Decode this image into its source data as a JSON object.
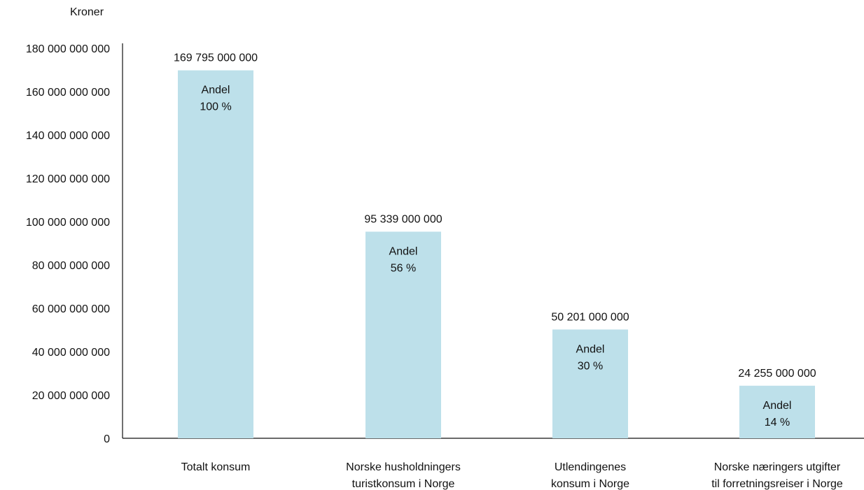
{
  "chart_data": {
    "type": "bar",
    "title": "",
    "ylabel": "Kroner",
    "xlabel": "",
    "ylim": [
      0,
      180000000000
    ],
    "yticks": [
      {
        "value": 0,
        "label": "0"
      },
      {
        "value": 20000000000,
        "label": "20 000 000 000"
      },
      {
        "value": 40000000000,
        "label": "40 000 000 000"
      },
      {
        "value": 60000000000,
        "label": "60 000 000 000"
      },
      {
        "value": 80000000000,
        "label": "80 000 000 000"
      },
      {
        "value": 100000000000,
        "label": "100 000 000 000"
      },
      {
        "value": 120000000000,
        "label": "120 000 000 000"
      },
      {
        "value": 140000000000,
        "label": "140 000 000 000"
      },
      {
        "value": 160000000000,
        "label": "160 000 000 000"
      },
      {
        "value": 180000000000,
        "label": "180 000 000 000"
      }
    ],
    "grid": false,
    "bar_color": "#bde0ea",
    "categories": [
      [
        "Totalt konsum"
      ],
      [
        "Norske husholdningers",
        "turistkonsum i Norge"
      ],
      [
        "Utlendingenes",
        "konsum i Norge"
      ],
      [
        "Norske næringers utgifter",
        "til forretningsreiser i Norge"
      ]
    ],
    "values": [
      169795000000,
      95339000000,
      50201000000,
      24255000000
    ],
    "value_labels": [
      "169 795 000 000",
      "95 339 000 000",
      "50 201 000 000",
      "24 255 000 000"
    ],
    "share_title": "Andel",
    "shares": [
      "100 %",
      "56 %",
      "30 %",
      "14 %"
    ]
  }
}
